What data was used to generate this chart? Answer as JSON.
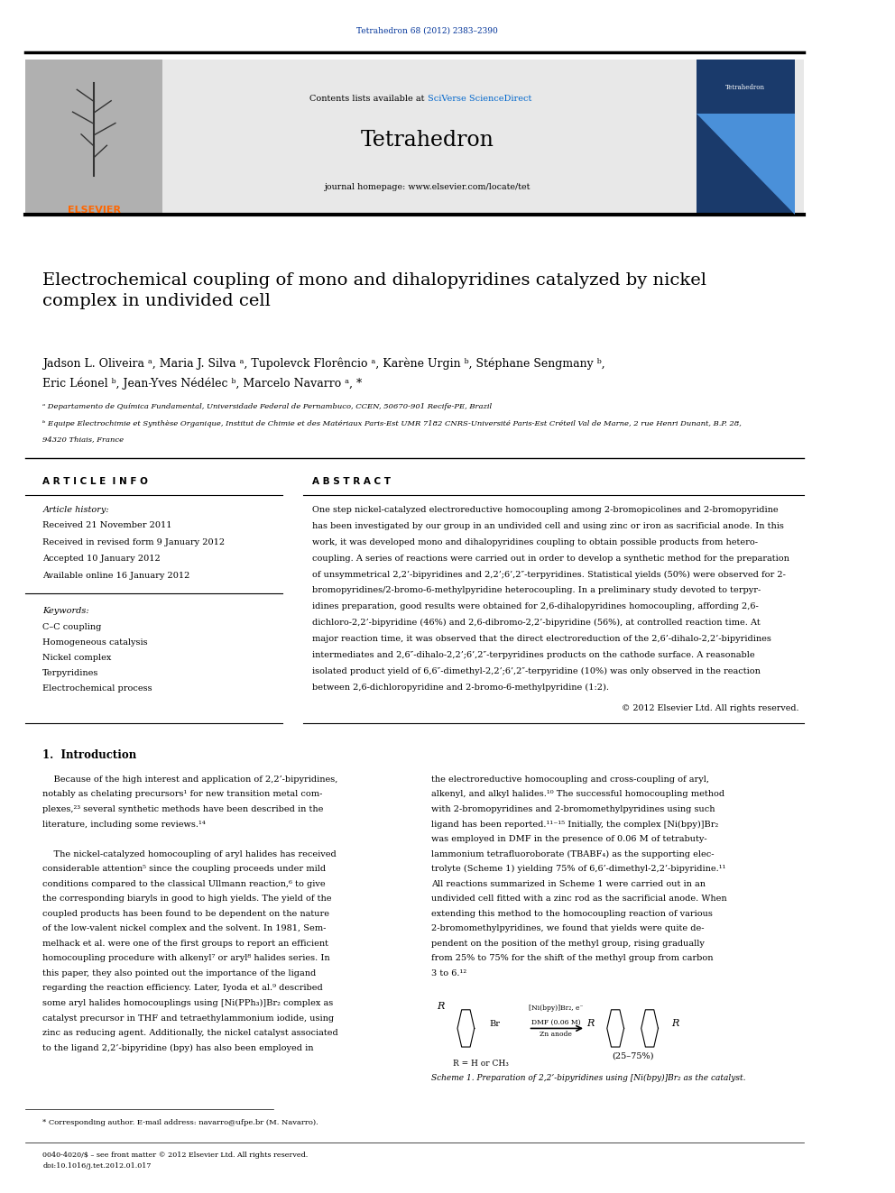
{
  "background_color": "#ffffff",
  "page_width": 9.92,
  "page_height": 13.23,
  "journal_ref": "Tetrahedron 68 (2012) 2383–2390",
  "journal_ref_color": "#003399",
  "contents_line": "Contents lists available at ",
  "sciverse_text": "SciVerse ScienceDirect",
  "sciverse_color": "#0066cc",
  "journal_name": "Tetrahedron",
  "journal_homepage": "journal homepage: www.elsevier.com/locate/tet",
  "header_bg": "#e8e8e8",
  "article_title": "Electrochemical coupling of mono and dihalopyridines catalyzed by nickel\ncomplex in undivided cell",
  "authors_line1": "Jadson L. Oliveira ᵃ, Maria J. Silva ᵃ, Tupolevck Florêncio ᵃ, Karène Urgin ᵇ, Stéphane Sengmany ᵇ,",
  "authors_line2": "Eric Léonel ᵇ, Jean-Yves Nédélec ᵇ, Marcelo Navarro ᵃ, *",
  "affil_a": "ᵃ Departamento de Química Fundamental, Universidade Federal de Pernambuco, CCEN, 50670-901 Recife-PE, Brazil",
  "affil_b": "ᵇ Equipe Electrochimie et Synthèse Organique, Institut de Chimie et des Matériaux Paris-Est UMR 7182 CNRS-Université Paris-Est Créteil Val de Marne, 2 rue Henri Dunant, B.P. 28,",
  "affil_b2": "94320 Thiais, France",
  "article_info_title": "A R T I C L E  I N F O",
  "article_history_title": "Article history:",
  "history_lines": [
    "Received 21 November 2011",
    "Received in revised form 9 January 2012",
    "Accepted 10 January 2012",
    "Available online 16 January 2012"
  ],
  "keywords_title": "Keywords:",
  "keywords": [
    "C–C coupling",
    "Homogeneous catalysis",
    "Nickel complex",
    "Terpyridines",
    "Electrochemical process"
  ],
  "abstract_title": "A B S T R A C T",
  "abstract_text": "One step nickel-catalyzed electroreductive homocoupling among 2-bromopicolines and 2-bromopyridine\nhas been investigated by our group in an undivided cell and using zinc or iron as sacrificial anode. In this\nwork, it was developed mono and dihalopyridines coupling to obtain possible products from hetero-\ncoupling. A series of reactions were carried out in order to develop a synthetic method for the preparation\nof unsymmetrical 2,2’-bipyridines and 2,2’;6’,2″-terpyridines. Statistical yields (50%) were observed for 2-\nbromopyridines/2-bromo-6-methylpyridine heterocoupling. In a preliminary study devoted to terpyr-\nidines preparation, good results were obtained for 2,6-dihalopyridines homocoupling, affording 2,6-\ndichloro-2,2’-bipyridine (46%) and 2,6-dibromo-2,2’-bipyridine (56%), at controlled reaction time. At\nmajor reaction time, it was observed that the direct electroreduction of the 2,6’-dihalo-2,2’-bipyridines\nintermediates and 2,6″-dihalo-2,2’;6’,2″-terpyridines products on the cathode surface. A reasonable\nisolated product yield of 6,6″-dimethyl-2,2’;6’,2″-terpyridine (10%) was only observed in the reaction\nbetween 2,6-dichloropyridine and 2-bromo-6-methylpyridine (1:2).",
  "copyright_text": "© 2012 Elsevier Ltd. All rights reserved.",
  "intro_title": "1.  Introduction",
  "intro_col1_lines": [
    "    Because of the high interest and application of 2,2’-bipyridines,",
    "notably as chelating precursors¹ for new transition metal com-",
    "plexes,²³ several synthetic methods have been described in the",
    "literature, including some reviews.¹⁴",
    "",
    "    The nickel-catalyzed homocoupling of aryl halides has received",
    "considerable attention⁵ since the coupling proceeds under mild",
    "conditions compared to the classical Ullmann reaction,⁶ to give",
    "the corresponding biaryls in good to high yields. The yield of the",
    "coupled products has been found to be dependent on the nature",
    "of the low-valent nickel complex and the solvent. In 1981, Sem-",
    "melhack et al. were one of the first groups to report an efficient",
    "homocoupling procedure with alkenyl⁷ or aryl⁸ halides series. In",
    "this paper, they also pointed out the importance of the ligand",
    "regarding the reaction efficiency. Later, Iyoda et al.⁹ described",
    "some aryl halides homocouplings using [Ni(PPh₃)]Br₂ complex as",
    "catalyst precursor in THF and tetraethylammonium iodide, using",
    "zinc as reducing agent. Additionally, the nickel catalyst associated",
    "to the ligand 2,2’-bipyridine (bpy) has also been employed in"
  ],
  "intro_col2_lines": [
    "the electroreductive homocoupling and cross-coupling of aryl,",
    "alkenyl, and alkyl halides.¹⁰ The successful homocoupling method",
    "with 2-bromopyridines and 2-bromomethylpyridines using such",
    "ligand has been reported.¹¹⁻¹⁵ Initially, the complex [Ni(bpy)]Br₂",
    "was employed in DMF in the presence of 0.06 M of tetrabuty-",
    "lammonium tetrafluoroborate (TBABF₄) as the supporting elec-",
    "trolyte (Scheme 1) yielding 75% of 6,6’-dimethyl-2,2’-bipyridine.¹¹",
    "All reactions summarized in Scheme 1 were carried out in an",
    "undivided cell fitted with a zinc rod as the sacrificial anode. When",
    "extending this method to the homocoupling reaction of various",
    "2-bromomethylpyridines, we found that yields were quite de-",
    "pendent on the position of the methyl group, rising gradually",
    "from 25% to 75% for the shift of the methyl group from carbon",
    "3 to 6.¹²"
  ],
  "scheme_caption": "Scheme 1. Preparation of 2,2’-bipyridines using [Ni(bpy)]Br₂ as the catalyst.",
  "scheme_reagents": "[Ni(bpy)]Br₂, e⁻",
  "scheme_solvent": "DMF (0.06 M)",
  "scheme_anode": "Zn anode",
  "scheme_yield": "(25–75%)",
  "scheme_r": "R = H or CH₃",
  "footnote_corresp": "* Corresponding author. E-mail address: navarro@ufpe.br (M. Navarro).",
  "footer_line1": "0040-4020/$ – see front matter © 2012 Elsevier Ltd. All rights reserved.",
  "footer_line2": "doi:10.1016/j.tet.2012.01.017",
  "elsevier_orange": "#FF6600",
  "link_blue": "#0066cc",
  "dark_blue": "#003399"
}
